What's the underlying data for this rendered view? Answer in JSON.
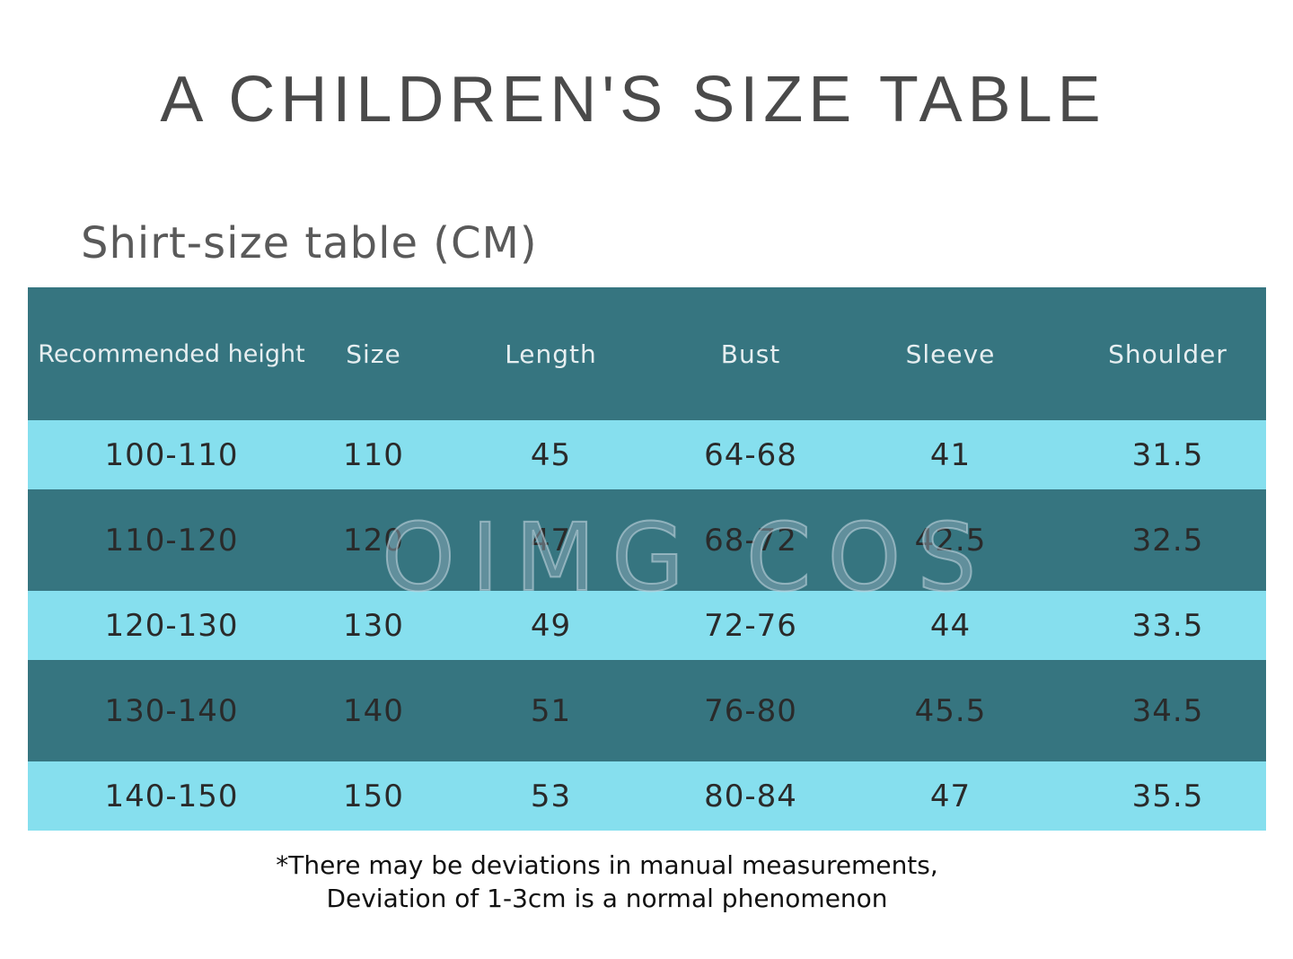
{
  "title": "A CHILDREN'S SIZE TABLE",
  "subtitle": "Shirt-size table (CM)",
  "table": {
    "headers": [
      "Recommended height",
      "Size",
      "Length",
      "Bust",
      "Sleeve",
      "Shoulder"
    ],
    "rows": [
      [
        "100-110",
        "110",
        "45",
        "64-68",
        "41",
        "31.5"
      ],
      [
        "110-120",
        "120",
        "47",
        "68-72",
        "42.5",
        "32.5"
      ],
      [
        "120-130",
        "130",
        "49",
        "72-76",
        "44",
        "33.5"
      ],
      [
        "130-140",
        "140",
        "51",
        "76-80",
        "45.5",
        "34.5"
      ],
      [
        "140-150",
        "150",
        "53",
        "80-84",
        "47",
        "35.5"
      ]
    ]
  },
  "watermark": "OIMG COS",
  "note": {
    "line1": "*There may be deviations in manual measurements,",
    "line2": "Deviation of 1-3cm is a normal phenomenon"
  },
  "colors": {
    "header_bg": "#367580",
    "dark_row_bg": "#367580",
    "light_row_bg": "#86dfee",
    "title_text": "#4a4a4a"
  }
}
